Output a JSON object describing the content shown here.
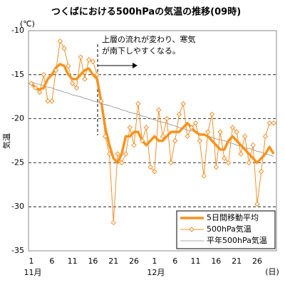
{
  "chart_data": {
    "type": "line",
    "title": "つくばにおける500hPaの気温の推移(09時)",
    "y_unit": "(℃)",
    "y_label": "気温",
    "x_unit": "(日)",
    "x_group_labels": [
      "11月",
      "12月"
    ],
    "annotation": [
      "上層の流れが変わり、寒気",
      "が南下しやすくなる。"
    ],
    "categories": [
      "1",
      null,
      null,
      null,
      null,
      "6",
      null,
      null,
      null,
      null,
      "11",
      null,
      null,
      null,
      null,
      "16",
      null,
      null,
      null,
      null,
      "21",
      null,
      null,
      null,
      null,
      "26",
      null,
      null,
      null,
      null,
      "1",
      null,
      null,
      null,
      null,
      "6",
      null,
      null,
      null,
      null,
      "11",
      null,
      null,
      null,
      null,
      "16",
      null,
      null,
      null,
      null,
      "21",
      null,
      null,
      null,
      null,
      "26",
      null,
      null,
      null,
      null
    ],
    "ylim": [
      -35,
      -10
    ],
    "yticks": [
      -10,
      -15,
      -20,
      -25,
      -30,
      -35
    ],
    "grid": true,
    "legend": "lower right",
    "series": [
      {
        "name": "5日間移動平均",
        "color": "#f7941d",
        "values": [
          -16,
          -16.5,
          -16.7,
          -16.5,
          -15.5,
          -15,
          -14.2,
          -13.8,
          -14,
          -15,
          -15.5,
          -15.5,
          -15,
          -14.5,
          -14.3,
          -15,
          -15.5,
          -18,
          -21,
          -23,
          -24.5,
          -25,
          -24,
          -22,
          -22,
          -21.5,
          -21.5,
          -22.5,
          -23,
          -22.5,
          -22,
          -22.5,
          -22.5,
          -22,
          -21.5,
          -21.5,
          -21.5,
          -21,
          -20.5,
          -21,
          -21.5,
          -21.8,
          -21.8,
          -22,
          -22.5,
          -23,
          -23.5,
          -23.5,
          -22.5,
          -22,
          -22.5,
          -23,
          -23.5,
          -24,
          -24.5,
          -25,
          -24.5,
          -24,
          -23.2,
          -24
        ]
      },
      {
        "name": "500hPa気温",
        "color": "#f0902a",
        "values": [
          -16,
          -16.5,
          -17,
          -15,
          -18,
          -18,
          -14.5,
          -11.2,
          -12,
          -14,
          -16,
          -16.5,
          -13,
          -15.5,
          -13.3,
          -13.5,
          -15,
          -18,
          -22,
          -24,
          -31.8,
          -24,
          -25,
          -24,
          -21,
          -23,
          -18.3,
          -22.5,
          -21,
          -25.5,
          -26,
          -19,
          -22,
          -20,
          -25,
          -22.5,
          -19.5,
          -18.3,
          -22,
          -21,
          -20.5,
          -22.5,
          -26.5,
          -21.5,
          -19.5,
          -25.5,
          -21.5,
          -24.5,
          -25,
          -21,
          -21.5,
          -24,
          -22,
          -25,
          -23,
          -29.7,
          -26,
          -22,
          -20.5,
          -20.5
        ]
      },
      {
        "name": "平年500hPa気温",
        "color": "#8c8c8c",
        "values": [
          -15.8,
          -16.0,
          -16.1,
          -16.3,
          -16.4,
          -16.5,
          -16.7,
          -16.8,
          -17.0,
          -17.1,
          -17.3,
          -17.4,
          -17.5,
          -17.7,
          -17.8,
          -18.0,
          -18.1,
          -18.3,
          -18.4,
          -18.5,
          -18.7,
          -18.8,
          -19.0,
          -19.1,
          -19.3,
          -19.4,
          -19.5,
          -19.7,
          -19.8,
          -20.0,
          -20.1,
          -20.3,
          -20.4,
          -20.5,
          -20.7,
          -20.8,
          -21.0,
          -21.1,
          -21.3,
          -21.4,
          -21.5,
          -21.7,
          -21.8,
          -22.0,
          -22.1,
          -22.3,
          -22.4,
          -22.5,
          -22.7,
          -22.8,
          -23.0,
          -23.1,
          -23.3,
          -23.4,
          -23.5,
          -23.7,
          -23.8,
          -24.0,
          -24.1,
          -24.3
        ]
      }
    ]
  }
}
